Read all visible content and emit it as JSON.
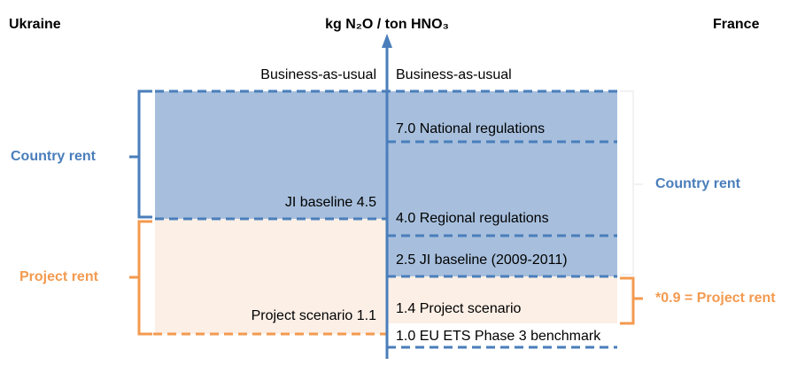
{
  "header": {
    "title": "kg N₂O / ton HNO₃",
    "left": "Ukraine",
    "right": "France"
  },
  "left": {
    "top": "Business-as-usual",
    "baseline": "JI baseline 4.5",
    "project": "Project scenario 1.1",
    "country_rent": "Country rent",
    "project_rent": "Project rent"
  },
  "right": {
    "top": "Business-as-usual",
    "levels": [
      "7.0 National regulations",
      "4.0 Regional regulations",
      "2.5 JI baseline (2009-2011)",
      "1.4 Project scenario",
      "1.0 EU ETS Phase 3 benchmark"
    ],
    "country_rent": "Country rent",
    "project_rent": "*0.9 = Project rent"
  }
}
